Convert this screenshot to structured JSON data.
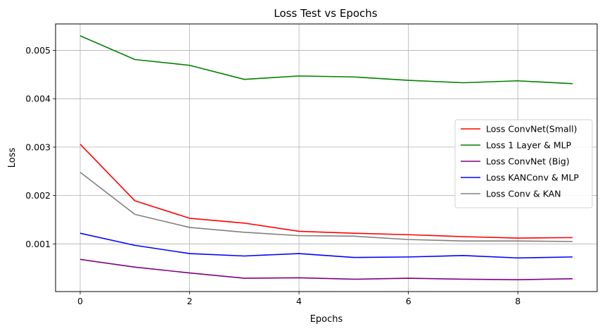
{
  "chart_data": {
    "type": "line",
    "title": "Loss Test vs Epochs",
    "xlabel": "Epochs",
    "ylabel": "Loss",
    "x": [
      0,
      1,
      2,
      3,
      4,
      5,
      6,
      7,
      8,
      9
    ],
    "xlim": [
      -0.45,
      9.45
    ],
    "ylim": [
      1.5e-05,
      0.005545
    ],
    "xticks": [
      0,
      2,
      4,
      6,
      8
    ],
    "yticks": [
      0.001,
      0.002,
      0.003,
      0.004,
      0.005
    ],
    "ytick_labels": [
      "0.001",
      "0.002",
      "0.003",
      "0.004",
      "0.005"
    ],
    "grid": true,
    "legend_position": "center-right",
    "series": [
      {
        "name": "Loss ConvNet(Small)",
        "color": "#ff0000",
        "values": [
          0.00306,
          0.00189,
          0.00153,
          0.00143,
          0.00126,
          0.00122,
          0.00119,
          0.00115,
          0.00112,
          0.00113
        ]
      },
      {
        "name": "Loss 1 Layer & MLP",
        "color": "#008000",
        "values": [
          0.0053,
          0.00481,
          0.00469,
          0.0044,
          0.00447,
          0.00445,
          0.00438,
          0.00433,
          0.00437,
          0.00431
        ]
      },
      {
        "name": "Loss ConvNet (Big)",
        "color": "#800080",
        "values": [
          0.00068,
          0.00052,
          0.0004,
          0.00029,
          0.0003,
          0.00027,
          0.00029,
          0.00027,
          0.00026,
          0.00028
        ]
      },
      {
        "name": "Loss KANConv & MLP",
        "color": "#0000ff",
        "values": [
          0.00122,
          0.00097,
          0.0008,
          0.00075,
          0.0008,
          0.00072,
          0.00073,
          0.00076,
          0.00071,
          0.00073
        ]
      },
      {
        "name": "Loss Conv & KAN",
        "color": "#808080",
        "values": [
          0.00248,
          0.00161,
          0.00134,
          0.00124,
          0.00117,
          0.00116,
          0.00109,
          0.00106,
          0.00106,
          0.00105
        ]
      }
    ]
  }
}
